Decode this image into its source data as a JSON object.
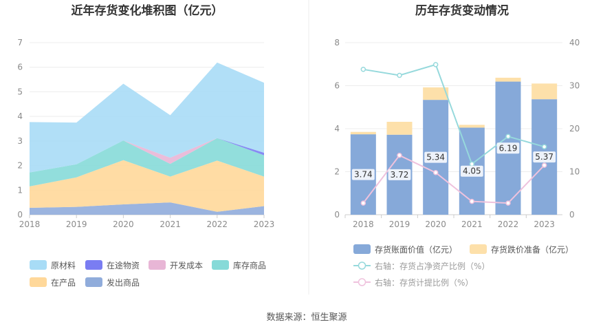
{
  "left_chart": {
    "title": "近年存货变化堆积图（亿元）",
    "legend": [
      {
        "name": "原材料",
        "color": "#a8dcf6"
      },
      {
        "name": "在途物资",
        "color": "#7a7df2"
      },
      {
        "name": "开发成本",
        "color": "#e8b6d6"
      },
      {
        "name": "库存商品",
        "color": "#86dad8"
      },
      {
        "name": "在产品",
        "color": "#ffd89a"
      },
      {
        "name": "发出商品",
        "color": "#90acdb"
      }
    ]
  },
  "right_chart": {
    "title": "历年存货变动情况",
    "legend": [
      {
        "name": "存货账面价值（亿元）",
        "color": "#86a9d9",
        "kind": "bar"
      },
      {
        "name": "存货跌价准备（亿元）",
        "color": "#fde0aa",
        "kind": "bar"
      },
      {
        "name": "右轴：存货占净资产比例（%）",
        "color": "#96d9dc",
        "kind": "line"
      },
      {
        "name": "右轴：存货计提比例（%）",
        "color": "#efc2dd",
        "kind": "line"
      }
    ]
  },
  "source": "数据来源：恒生聚源",
  "chart_data": [
    {
      "type": "area",
      "stacked": true,
      "title": "近年存货变化堆积图（亿元）",
      "x": [
        "2018",
        "2019",
        "2020",
        "2021",
        "2022",
        "2023"
      ],
      "ylim": [
        0,
        7
      ],
      "yticks": [
        0,
        1,
        2,
        3,
        4,
        5,
        6,
        7
      ],
      "grid": true,
      "legend_position": "bottom",
      "series": [
        {
          "name": "发出商品",
          "color": "#90acdb",
          "values": [
            0.28,
            0.32,
            0.42,
            0.5,
            0.12,
            0.35
          ]
        },
        {
          "name": "在产品",
          "color": "#ffd89a",
          "values": [
            0.87,
            1.2,
            1.8,
            1.05,
            2.08,
            1.2
          ]
        },
        {
          "name": "库存商品",
          "color": "#86dad8",
          "values": [
            0.57,
            0.53,
            0.8,
            0.52,
            0.92,
            0.87
          ]
        },
        {
          "name": "开发成本",
          "color": "#e8b6d6",
          "values": [
            0.0,
            0.0,
            0.0,
            0.25,
            0.0,
            0.0
          ]
        },
        {
          "name": "在途物资",
          "color": "#7a7df2",
          "values": [
            0.0,
            0.0,
            0.0,
            0.0,
            0.0,
            0.1
          ]
        },
        {
          "name": "原材料",
          "color": "#a8dcf6",
          "values": [
            2.05,
            1.7,
            2.31,
            1.73,
            3.07,
            2.85
          ]
        }
      ]
    },
    {
      "type": "bar",
      "stacked": true,
      "title": "历年存货变动情况",
      "categories": [
        "2018",
        "2019",
        "2020",
        "2021",
        "2022",
        "2023"
      ],
      "ylim": [
        0,
        8
      ],
      "yticks": [
        0,
        2,
        4,
        6,
        8
      ],
      "y2lim": [
        0,
        40
      ],
      "y2ticks": [
        0,
        10,
        20,
        30,
        40
      ],
      "grid": true,
      "legend_position": "bottom",
      "series": [
        {
          "name": "存货账面价值（亿元）",
          "color": "#86a9d9",
          "axis": "left",
          "values": [
            3.74,
            3.72,
            5.34,
            4.05,
            6.19,
            5.37
          ],
          "labels": [
            "3.74",
            "3.72",
            "5.34",
            "4.05",
            "6.19",
            "5.37"
          ]
        },
        {
          "name": "存货跌价准备（亿元）",
          "color": "#fde0aa",
          "axis": "left",
          "values": [
            0.11,
            0.6,
            0.58,
            0.13,
            0.18,
            0.73
          ]
        },
        {
          "name": "右轴：存货占净资产比例（%）",
          "color": "#96d9dc",
          "axis": "right",
          "type": "line",
          "values": [
            33.8,
            32.4,
            34.9,
            11.8,
            18.2,
            15.8
          ]
        },
        {
          "name": "右轴：存货计提比例（%）",
          "color": "#efc2dd",
          "axis": "right",
          "type": "line",
          "values": [
            2.7,
            13.8,
            9.8,
            3.1,
            2.7,
            11.5
          ]
        }
      ]
    }
  ]
}
